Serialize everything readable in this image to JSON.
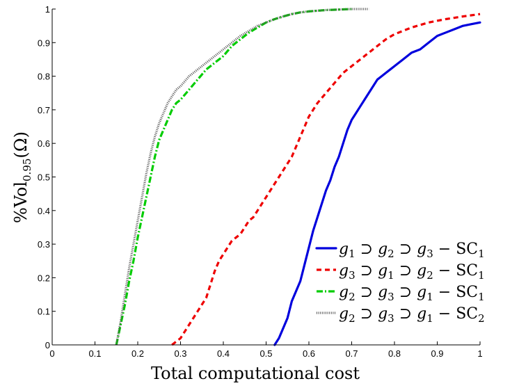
{
  "chart_data": {
    "type": "line",
    "title": "",
    "xlabel": "Total computational cost",
    "ylabel": "%Vol",
    "ylabel_sub": "0.95",
    "ylabel_suffix": "(Ω)",
    "xlim": [
      0,
      1
    ],
    "ylim": [
      0,
      1
    ],
    "x_ticks": [
      "0",
      "0.1",
      "0.2",
      "0.3",
      "0.4",
      "0.5",
      "0.6",
      "0.7",
      "0.8",
      "0.9",
      "1"
    ],
    "y_ticks": [
      "0",
      "0.1",
      "0.2",
      "0.3",
      "0.4",
      "0.5",
      "0.6",
      "0.7",
      "0.8",
      "0.9",
      "1"
    ],
    "grid": false,
    "legend_position": "bottom-right",
    "series": [
      {
        "name": "g1 ⊃ g2 ⊃ g3 − SC1",
        "legend": {
          "a": "g",
          "as": "1",
          "b": "g",
          "bs": "2",
          "c": "g",
          "cs": "3",
          "sc": "SC",
          "scs": "1"
        },
        "color": "#0000dd",
        "style": "solid",
        "x": [
          0.52,
          0.525,
          0.53,
          0.54,
          0.55,
          0.56,
          0.57,
          0.58,
          0.59,
          0.6,
          0.61,
          0.62,
          0.63,
          0.64,
          0.65,
          0.66,
          0.67,
          0.68,
          0.69,
          0.7,
          0.71,
          0.72,
          0.73,
          0.74,
          0.75,
          0.76,
          0.77,
          0.78,
          0.79,
          0.8,
          0.82,
          0.84,
          0.86,
          0.88,
          0.9,
          0.92,
          0.94,
          0.96,
          0.98,
          1.0
        ],
        "y": [
          0.0,
          0.01,
          0.02,
          0.05,
          0.08,
          0.13,
          0.16,
          0.19,
          0.24,
          0.29,
          0.34,
          0.38,
          0.42,
          0.46,
          0.49,
          0.53,
          0.56,
          0.6,
          0.64,
          0.67,
          0.69,
          0.71,
          0.73,
          0.75,
          0.77,
          0.79,
          0.8,
          0.81,
          0.82,
          0.83,
          0.85,
          0.87,
          0.88,
          0.9,
          0.92,
          0.93,
          0.94,
          0.95,
          0.955,
          0.96
        ]
      },
      {
        "name": "g3 ⊃ g1 ⊃ g2 − SC1",
        "legend": {
          "a": "g",
          "as": "3",
          "b": "g",
          "bs": "1",
          "c": "g",
          "cs": "2",
          "sc": "SC",
          "scs": "1"
        },
        "color": "#ee0000",
        "style": "dashed",
        "x": [
          0.28,
          0.29,
          0.3,
          0.31,
          0.32,
          0.33,
          0.34,
          0.35,
          0.36,
          0.37,
          0.38,
          0.39,
          0.4,
          0.41,
          0.42,
          0.43,
          0.44,
          0.45,
          0.46,
          0.47,
          0.48,
          0.49,
          0.5,
          0.51,
          0.52,
          0.53,
          0.54,
          0.55,
          0.56,
          0.57,
          0.58,
          0.59,
          0.6,
          0.62,
          0.64,
          0.66,
          0.68,
          0.7,
          0.72,
          0.74,
          0.76,
          0.78,
          0.8,
          0.84,
          0.88,
          0.92,
          0.96,
          1.0
        ],
        "y": [
          0.0,
          0.01,
          0.02,
          0.04,
          0.06,
          0.08,
          0.1,
          0.12,
          0.14,
          0.18,
          0.22,
          0.25,
          0.27,
          0.29,
          0.31,
          0.32,
          0.33,
          0.35,
          0.37,
          0.38,
          0.4,
          0.42,
          0.44,
          0.46,
          0.48,
          0.5,
          0.52,
          0.54,
          0.56,
          0.59,
          0.62,
          0.65,
          0.68,
          0.72,
          0.75,
          0.78,
          0.81,
          0.83,
          0.85,
          0.87,
          0.89,
          0.91,
          0.925,
          0.945,
          0.96,
          0.97,
          0.978,
          0.985
        ]
      },
      {
        "name": "g2 ⊃ g3 ⊃ g1 − SC1",
        "legend": {
          "a": "g",
          "as": "2",
          "b": "g",
          "bs": "3",
          "c": "g",
          "cs": "1",
          "sc": "SC",
          "scs": "1"
        },
        "color": "#00cc00",
        "style": "dashdot",
        "x": [
          0.15,
          0.16,
          0.17,
          0.18,
          0.19,
          0.2,
          0.21,
          0.22,
          0.23,
          0.24,
          0.25,
          0.26,
          0.27,
          0.28,
          0.29,
          0.3,
          0.32,
          0.34,
          0.36,
          0.38,
          0.4,
          0.42,
          0.44,
          0.46,
          0.48,
          0.5,
          0.52,
          0.54,
          0.56,
          0.58,
          0.6,
          0.62,
          0.64,
          0.66,
          0.68,
          0.7
        ],
        "y": [
          0.0,
          0.06,
          0.12,
          0.19,
          0.25,
          0.32,
          0.38,
          0.44,
          0.5,
          0.56,
          0.61,
          0.64,
          0.67,
          0.7,
          0.72,
          0.73,
          0.76,
          0.79,
          0.82,
          0.84,
          0.86,
          0.89,
          0.91,
          0.93,
          0.945,
          0.96,
          0.97,
          0.978,
          0.985,
          0.99,
          0.993,
          0.995,
          0.997,
          0.998,
          0.999,
          1.0
        ]
      },
      {
        "name": "g2 ⊃ g3 ⊃ g1 − SC2",
        "legend": {
          "a": "g",
          "as": "2",
          "b": "g",
          "bs": "3",
          "c": "g",
          "cs": "1",
          "sc": "SC",
          "scs": "2"
        },
        "color": "#555555",
        "style": "dotted",
        "x": [
          0.15,
          0.16,
          0.17,
          0.18,
          0.19,
          0.2,
          0.21,
          0.22,
          0.23,
          0.24,
          0.25,
          0.26,
          0.27,
          0.28,
          0.29,
          0.3,
          0.32,
          0.34,
          0.36,
          0.38,
          0.4,
          0.42,
          0.44,
          0.46,
          0.48,
          0.5,
          0.52,
          0.54,
          0.56,
          0.58,
          0.6,
          0.62,
          0.64,
          0.66,
          0.68,
          0.7,
          0.72,
          0.74
        ],
        "y": [
          0.0,
          0.07,
          0.15,
          0.23,
          0.3,
          0.37,
          0.44,
          0.51,
          0.57,
          0.62,
          0.66,
          0.69,
          0.72,
          0.74,
          0.76,
          0.77,
          0.8,
          0.82,
          0.84,
          0.86,
          0.88,
          0.9,
          0.92,
          0.935,
          0.95,
          0.96,
          0.97,
          0.978,
          0.985,
          0.99,
          0.993,
          0.995,
          0.997,
          0.998,
          0.999,
          1.0,
          1.0,
          1.0
        ]
      }
    ]
  }
}
